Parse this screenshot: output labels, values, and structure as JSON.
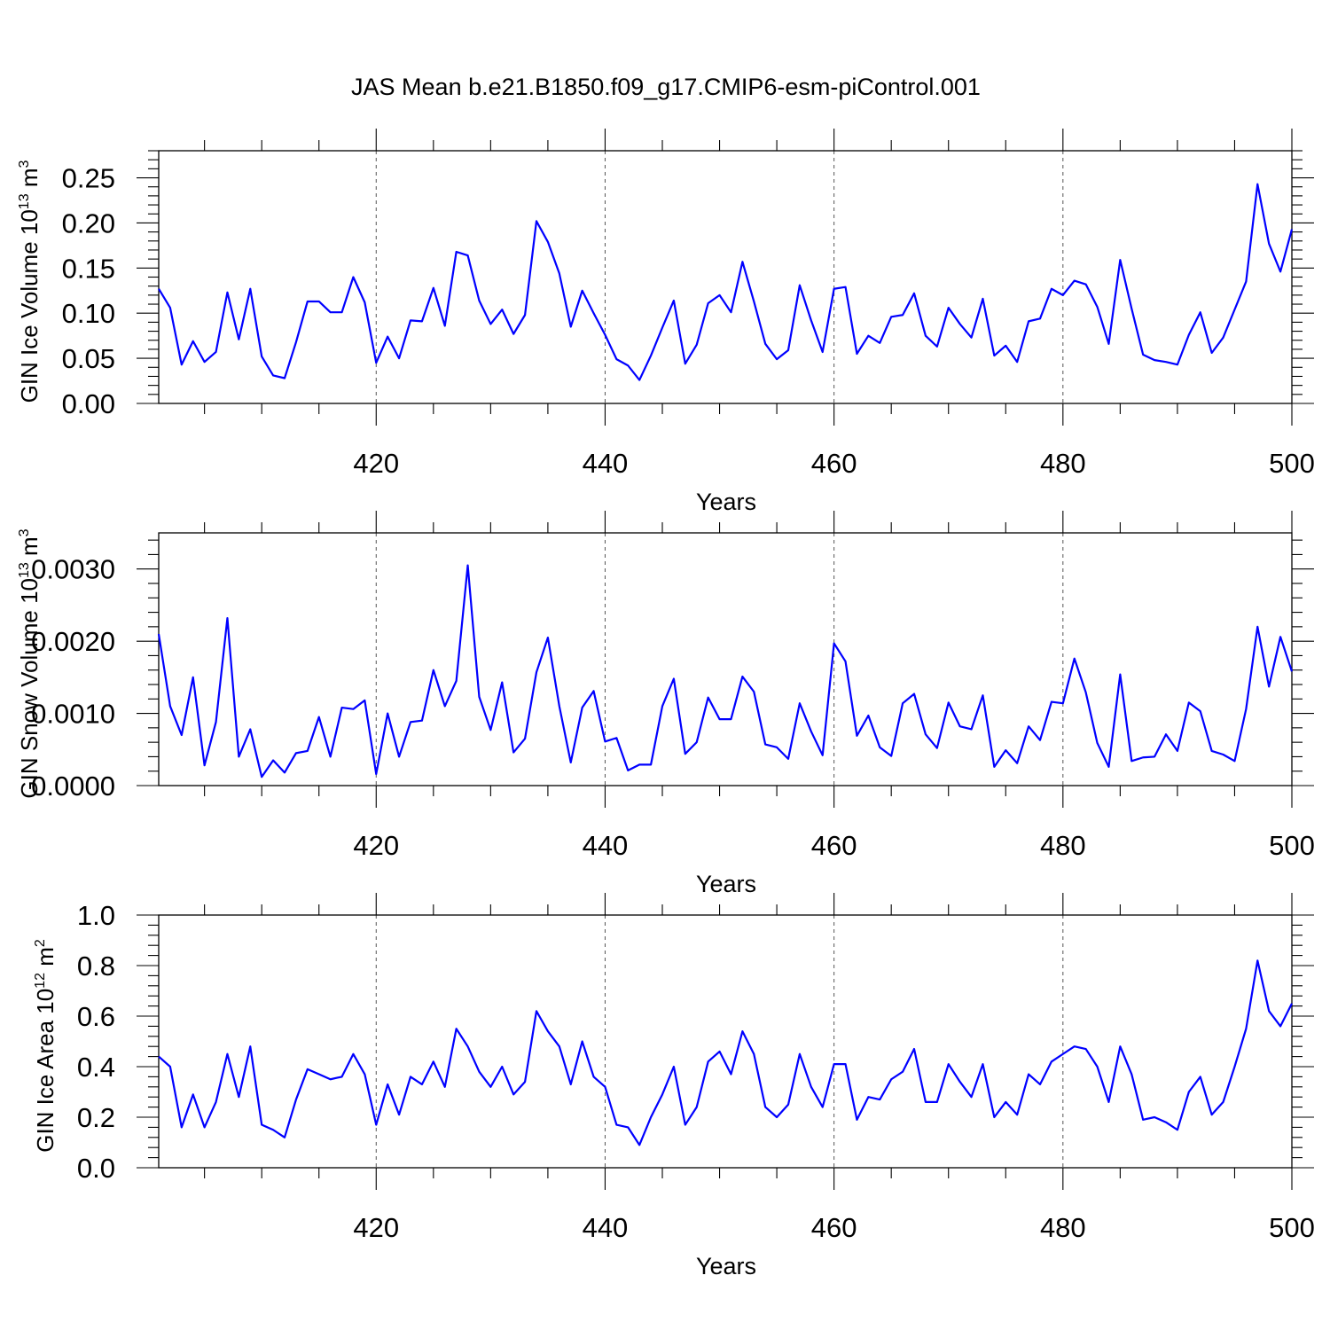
{
  "figure": {
    "title": "JAS Mean b.e21.B1850.f09_g17.CMIP6-esm-piControl.001",
    "line_color": "#0000ff"
  },
  "chart_data": [
    {
      "type": "line",
      "xlabel": "Years",
      "ylabel": "GIN Ice Volume 10",
      "ylabel_sup": "13",
      "ylabel_unit": " m",
      "ylabel_unit_sup": "3",
      "xlim": [
        401,
        500
      ],
      "ylim": [
        0,
        0.28
      ],
      "x_ticks": [
        420,
        440,
        460,
        480,
        500
      ],
      "x_tick_labels": [
        "420",
        "440",
        "460",
        "480",
        "500"
      ],
      "y_ticks": [
        0,
        0.05,
        0.1,
        0.15,
        0.2,
        0.25
      ],
      "y_tick_labels": [
        "0.00",
        "0.05",
        "0.10",
        "0.15",
        "0.20",
        "0.25"
      ],
      "grid": "vertical dashed at x ticks",
      "x_start": 401,
      "values": [
        0.127,
        0.106,
        0.043,
        0.069,
        0.046,
        0.057,
        0.123,
        0.071,
        0.127,
        0.052,
        0.031,
        0.028,
        0.068,
        0.113,
        0.113,
        0.101,
        0.101,
        0.14,
        0.112,
        0.045,
        0.074,
        0.05,
        0.092,
        0.091,
        0.128,
        0.086,
        0.168,
        0.164,
        0.114,
        0.088,
        0.104,
        0.077,
        0.098,
        0.202,
        0.179,
        0.144,
        0.085,
        0.125,
        0.1,
        0.076,
        0.049,
        0.042,
        0.026,
        0.053,
        0.084,
        0.114,
        0.044,
        0.065,
        0.111,
        0.12,
        0.101,
        0.157,
        0.113,
        0.066,
        0.049,
        0.059,
        0.131,
        0.092,
        0.057,
        0.127,
        0.129,
        0.055,
        0.075,
        0.067,
        0.096,
        0.098,
        0.122,
        0.075,
        0.063,
        0.106,
        0.088,
        0.073,
        0.116,
        0.053,
        0.064,
        0.046,
        0.091,
        0.094,
        0.127,
        0.12,
        0.136,
        0.132,
        0.107,
        0.066,
        0.159,
        0.105,
        0.054,
        0.048,
        0.046,
        0.043,
        0.076,
        0.101,
        0.056,
        0.073,
        0.104,
        0.135,
        0.243,
        0.177,
        0.146,
        0.193
      ]
    },
    {
      "type": "line",
      "xlabel": "Years",
      "ylabel": "GIN Snow Volume 10",
      "ylabel_sup": "13",
      "ylabel_unit": " m",
      "ylabel_unit_sup": "3",
      "xlim": [
        401,
        500
      ],
      "ylim": [
        0,
        0.0035
      ],
      "x_ticks": [
        420,
        440,
        460,
        480,
        500
      ],
      "x_tick_labels": [
        "420",
        "440",
        "460",
        "480",
        "500"
      ],
      "y_ticks": [
        0,
        0.001,
        0.002,
        0.003
      ],
      "y_tick_labels": [
        "0.0000",
        "0.0010",
        "0.0020",
        "0.0030"
      ],
      "grid": "vertical dashed at x ticks",
      "x_start": 401,
      "values": [
        0.0021,
        0.0011,
        0.0007,
        0.0015,
        0.00028,
        0.00088,
        0.00232,
        0.0004,
        0.00078,
        0.00012,
        0.00035,
        0.00018,
        0.00045,
        0.00048,
        0.00095,
        0.0004,
        0.00108,
        0.00106,
        0.00118,
        0.00016,
        0.001,
        0.0004,
        0.00088,
        0.0009,
        0.0016,
        0.0011,
        0.00145,
        0.00305,
        0.00123,
        0.00077,
        0.00143,
        0.00046,
        0.00065,
        0.00157,
        0.00205,
        0.0011,
        0.00032,
        0.00108,
        0.00131,
        0.00061,
        0.00066,
        0.00021,
        0.00029,
        0.00029,
        0.0011,
        0.00148,
        0.00044,
        0.0006,
        0.00122,
        0.00092,
        0.00092,
        0.00151,
        0.0013,
        0.00057,
        0.00053,
        0.00037,
        0.00114,
        0.00075,
        0.00042,
        0.00197,
        0.00172,
        0.00069,
        0.00097,
        0.00053,
        0.00041,
        0.00114,
        0.00127,
        0.00071,
        0.00052,
        0.00115,
        0.00082,
        0.00078,
        0.00125,
        0.00026,
        0.00049,
        0.00031,
        0.00082,
        0.00063,
        0.00116,
        0.00114,
        0.00176,
        0.00129,
        0.00059,
        0.00026,
        0.00154,
        0.00034,
        0.00039,
        0.0004,
        0.00071,
        0.00048,
        0.00115,
        0.00103,
        0.00048,
        0.00043,
        0.00034,
        0.00106,
        0.0022,
        0.00137,
        0.00206,
        0.00158
      ]
    },
    {
      "type": "line",
      "xlabel": "Years",
      "ylabel": "GIN Ice Area 10",
      "ylabel_sup": "12",
      "ylabel_unit": " m",
      "ylabel_unit_sup": "2",
      "xlim": [
        401,
        500
      ],
      "ylim": [
        0,
        1.0
      ],
      "x_ticks": [
        420,
        440,
        460,
        480,
        500
      ],
      "x_tick_labels": [
        "420",
        "440",
        "460",
        "480",
        "500"
      ],
      "y_ticks": [
        0,
        0.2,
        0.4,
        0.6,
        0.8,
        1.0
      ],
      "y_tick_labels": [
        "0.0",
        "0.2",
        "0.4",
        "0.6",
        "0.8",
        "1.0"
      ],
      "grid": "vertical dashed at x ticks",
      "x_start": 401,
      "values": [
        0.44,
        0.4,
        0.16,
        0.29,
        0.16,
        0.26,
        0.45,
        0.28,
        0.48,
        0.17,
        0.15,
        0.12,
        0.27,
        0.39,
        0.37,
        0.35,
        0.36,
        0.45,
        0.37,
        0.17,
        0.33,
        0.21,
        0.36,
        0.33,
        0.42,
        0.32,
        0.55,
        0.48,
        0.38,
        0.32,
        0.4,
        0.29,
        0.34,
        0.62,
        0.54,
        0.48,
        0.33,
        0.5,
        0.36,
        0.32,
        0.17,
        0.16,
        0.09,
        0.2,
        0.29,
        0.4,
        0.17,
        0.24,
        0.42,
        0.46,
        0.37,
        0.54,
        0.45,
        0.24,
        0.2,
        0.25,
        0.45,
        0.32,
        0.24,
        0.41,
        0.41,
        0.19,
        0.28,
        0.27,
        0.35,
        0.38,
        0.47,
        0.26,
        0.26,
        0.41,
        0.34,
        0.28,
        0.41,
        0.2,
        0.26,
        0.21,
        0.37,
        0.33,
        0.42,
        0.45,
        0.48,
        0.47,
        0.4,
        0.26,
        0.48,
        0.37,
        0.19,
        0.2,
        0.18,
        0.15,
        0.3,
        0.36,
        0.21,
        0.26,
        0.4,
        0.55,
        0.82,
        0.62,
        0.56,
        0.65
      ]
    }
  ]
}
